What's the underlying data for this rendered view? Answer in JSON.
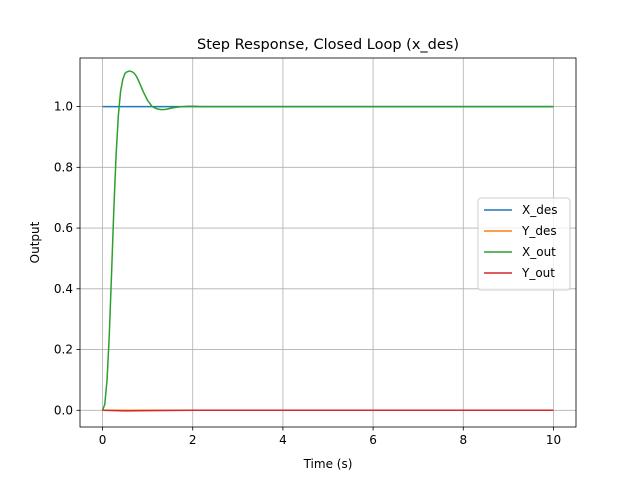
{
  "chart_data": {
    "type": "line",
    "title": "Step Response, Closed Loop (x_des)",
    "xlabel": "Time (s)",
    "ylabel": "Output",
    "xlim": [
      -0.5,
      10.5
    ],
    "ylim": [
      -0.055,
      1.16
    ],
    "xticks": [
      0,
      2,
      4,
      6,
      8,
      10
    ],
    "xtick_labels": [
      "0",
      "2",
      "4",
      "6",
      "8",
      "10"
    ],
    "yticks": [
      0.0,
      0.2,
      0.4,
      0.6,
      0.8,
      1.0
    ],
    "ytick_labels": [
      "0.0",
      "0.2",
      "0.4",
      "0.6",
      "0.8",
      "1.0"
    ],
    "grid": true,
    "legend_position": "center-right",
    "series": [
      {
        "name": "X_des",
        "color": "#1f77b4",
        "x": [
          0,
          10
        ],
        "y": [
          1.0,
          1.0
        ]
      },
      {
        "name": "Y_des",
        "color": "#ff7f0e",
        "x": [
          0,
          10
        ],
        "y": [
          0.0,
          0.0
        ]
      },
      {
        "name": "X_out",
        "color": "#2ca02c",
        "x": [
          0,
          0.05,
          0.1,
          0.15,
          0.2,
          0.25,
          0.3,
          0.35,
          0.4,
          0.45,
          0.5,
          0.55,
          0.6,
          0.65,
          0.7,
          0.75,
          0.8,
          0.9,
          1.0,
          1.1,
          1.2,
          1.3,
          1.4,
          1.5,
          1.6,
          1.7,
          1.8,
          1.9,
          2.0,
          2.2,
          2.5,
          3.0,
          4.0,
          5.0,
          6.0,
          7.0,
          8.0,
          9.0,
          10.0
        ],
        "y": [
          0.0,
          0.02,
          0.1,
          0.25,
          0.45,
          0.66,
          0.84,
          0.97,
          1.05,
          1.09,
          1.11,
          1.115,
          1.117,
          1.115,
          1.11,
          1.1,
          1.085,
          1.05,
          1.02,
          1.0,
          0.993,
          0.99,
          0.991,
          0.994,
          0.997,
          0.999,
          1.0,
          1.001,
          1.001,
          1.0,
          1.0,
          1.0,
          1.0,
          1.0,
          1.0,
          1.0,
          1.0,
          1.0,
          1.0
        ]
      },
      {
        "name": "Y_out",
        "color": "#d62728",
        "x": [
          0,
          0.5,
          1.0,
          2.0,
          10.0
        ],
        "y": [
          0.0,
          -0.002,
          -0.001,
          0.0,
          0.0
        ]
      }
    ]
  }
}
